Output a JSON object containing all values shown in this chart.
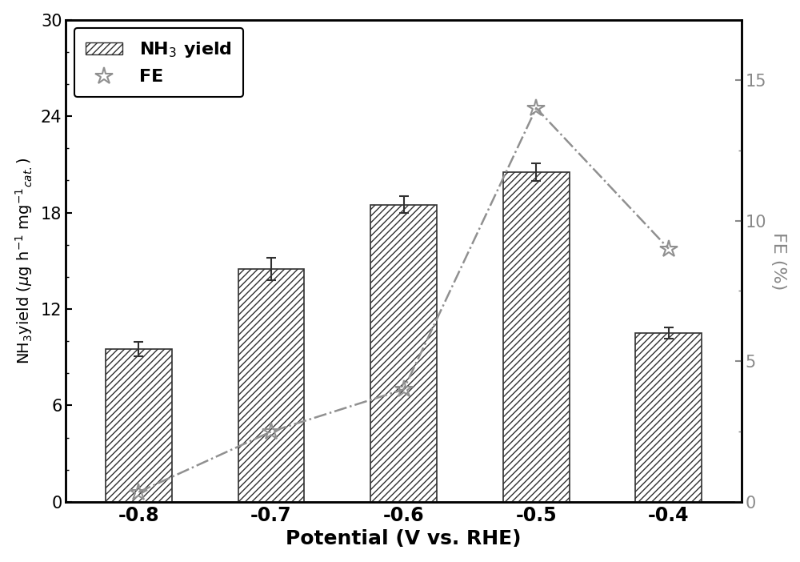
{
  "potentials": [
    -0.8,
    -0.7,
    -0.6,
    -0.5,
    -0.4
  ],
  "potential_labels": [
    "-0.8",
    "-0.7",
    "-0.6",
    "-0.5",
    "-0.4"
  ],
  "nh3_yield": [
    9.5,
    14.5,
    18.5,
    20.5,
    10.5
  ],
  "nh3_yield_err": [
    0.45,
    0.7,
    0.5,
    0.55,
    0.35
  ],
  "fe_values": [
    0.35,
    2.5,
    4.0,
    14.0,
    9.0
  ],
  "bar_color": "#ffffff",
  "bar_hatch": "////",
  "bar_edgecolor": "#303030",
  "fe_color": "#909090",
  "line_color": "#909090",
  "ylabel_left": "NH$_3$yield ($\\mu$g h$^{-1}$ mg$^{-1}$$_{cat.}$)",
  "ylabel_right": "FE (%)",
  "xlabel": "Potential (V vs. RHE)",
  "ylim_left": [
    0,
    30
  ],
  "ylim_right": [
    0,
    17.14
  ],
  "yticks_left": [
    0,
    6,
    12,
    18,
    24,
    30
  ],
  "yticks_right": [
    0,
    5,
    10,
    15
  ],
  "legend_nh3": "NH$_3$ yield",
  "legend_fe": "FE",
  "background_color": "#ffffff",
  "figsize": [
    10.0,
    7.02
  ],
  "dpi": 100
}
